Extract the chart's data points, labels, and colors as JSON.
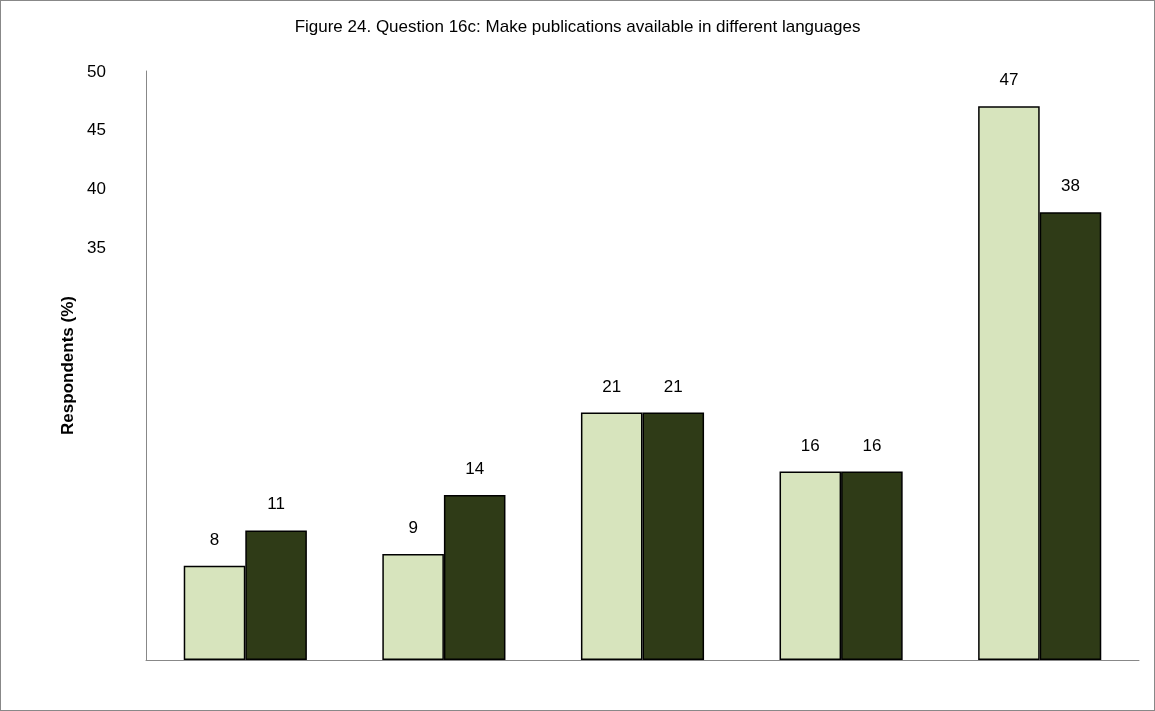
{
  "chart_data": {
    "type": "bar",
    "title": "Figure 24. Question 16c: Make publications available in different languages",
    "ylabel": "Respondents (%)",
    "categories": [
      null,
      null,
      null,
      null,
      null
    ],
    "series": [
      {
        "color": "#d7e4bd",
        "values": [
          8,
          9,
          21,
          16,
          47
        ]
      },
      {
        "color": "#2f3b17",
        "values": [
          11,
          14,
          21,
          16,
          38
        ]
      }
    ],
    "ylim": [
      0,
      50
    ],
    "yticks": [
      35,
      40,
      45,
      50
    ],
    "grid": false,
    "data_labels": true
  }
}
